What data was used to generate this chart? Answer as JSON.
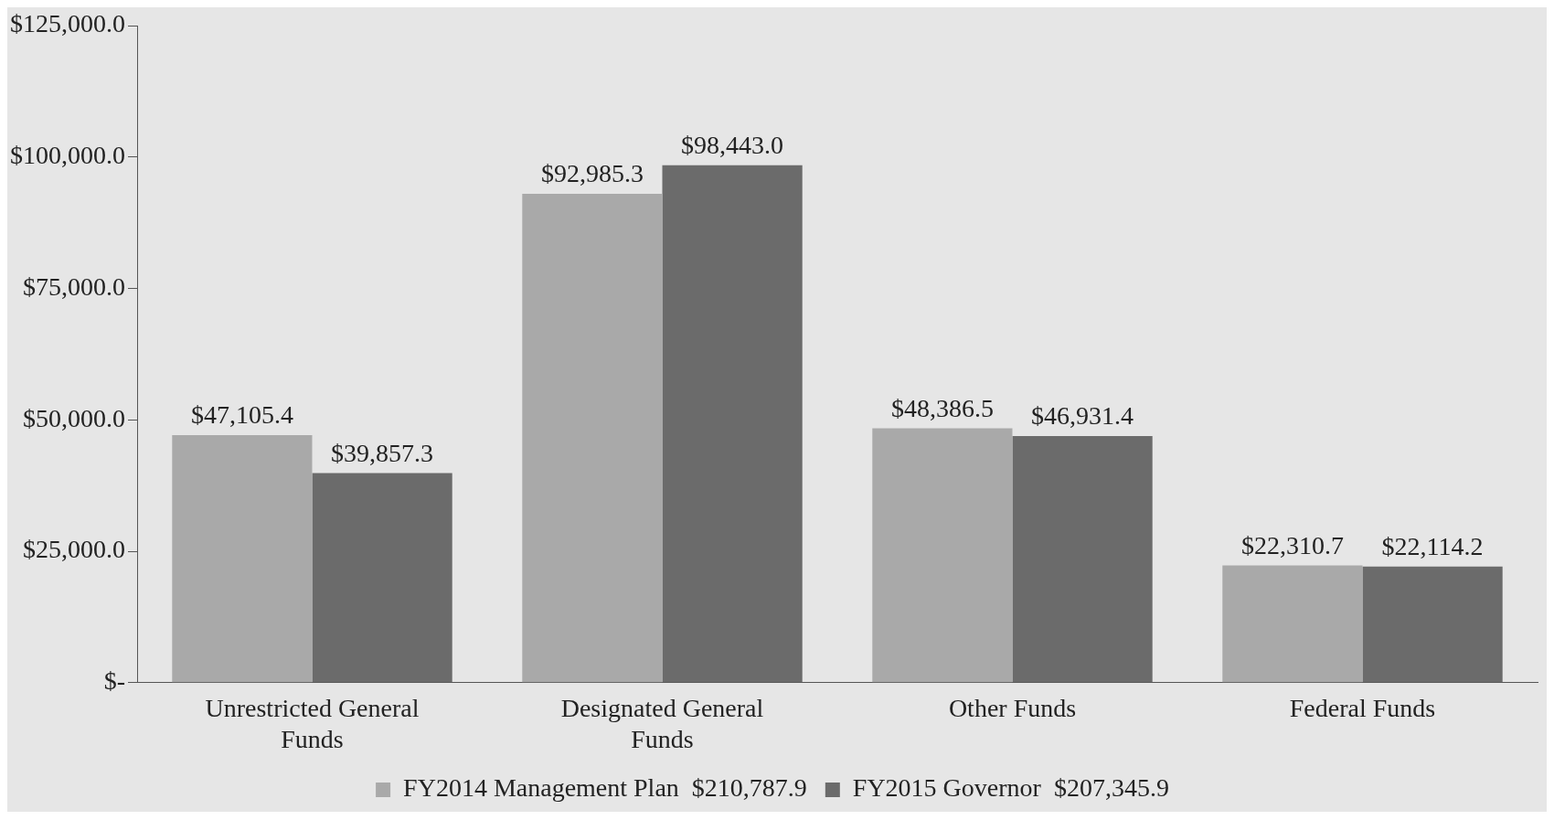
{
  "chart_data": {
    "type": "bar",
    "categories": [
      "Unrestricted General Funds",
      "Designated General Funds",
      "Other Funds",
      "Federal Funds"
    ],
    "series": [
      {
        "name": "FY2014 Management Plan  $210,787.9",
        "color": "#a9a9a9",
        "values": [
          47105.4,
          92985.3,
          48386.5,
          22310.7
        ],
        "value_labels": [
          "$47,105.4",
          "$92,985.3",
          "$48,386.5",
          "$22,310.7"
        ]
      },
      {
        "name": "FY2015 Governor  $207,345.9",
        "color": "#6b6b6b",
        "values": [
          39857.3,
          98443.0,
          46931.4,
          22114.2
        ],
        "value_labels": [
          "$39,857.3",
          "$98,443.0",
          "$46,931.4",
          "$22,114.2"
        ]
      }
    ],
    "ylim": [
      0,
      125000
    ],
    "yticks": [
      {
        "value": 0,
        "label": "$-"
      },
      {
        "value": 25000,
        "label": "$25,000.0"
      },
      {
        "value": 50000,
        "label": "$50,000.0"
      },
      {
        "value": 75000,
        "label": "$75,000.0"
      },
      {
        "value": 100000,
        "label": "$100,000.0"
      },
      {
        "value": 125000,
        "label": "$125,000.0"
      }
    ],
    "grid": false,
    "legend": "bottom"
  }
}
